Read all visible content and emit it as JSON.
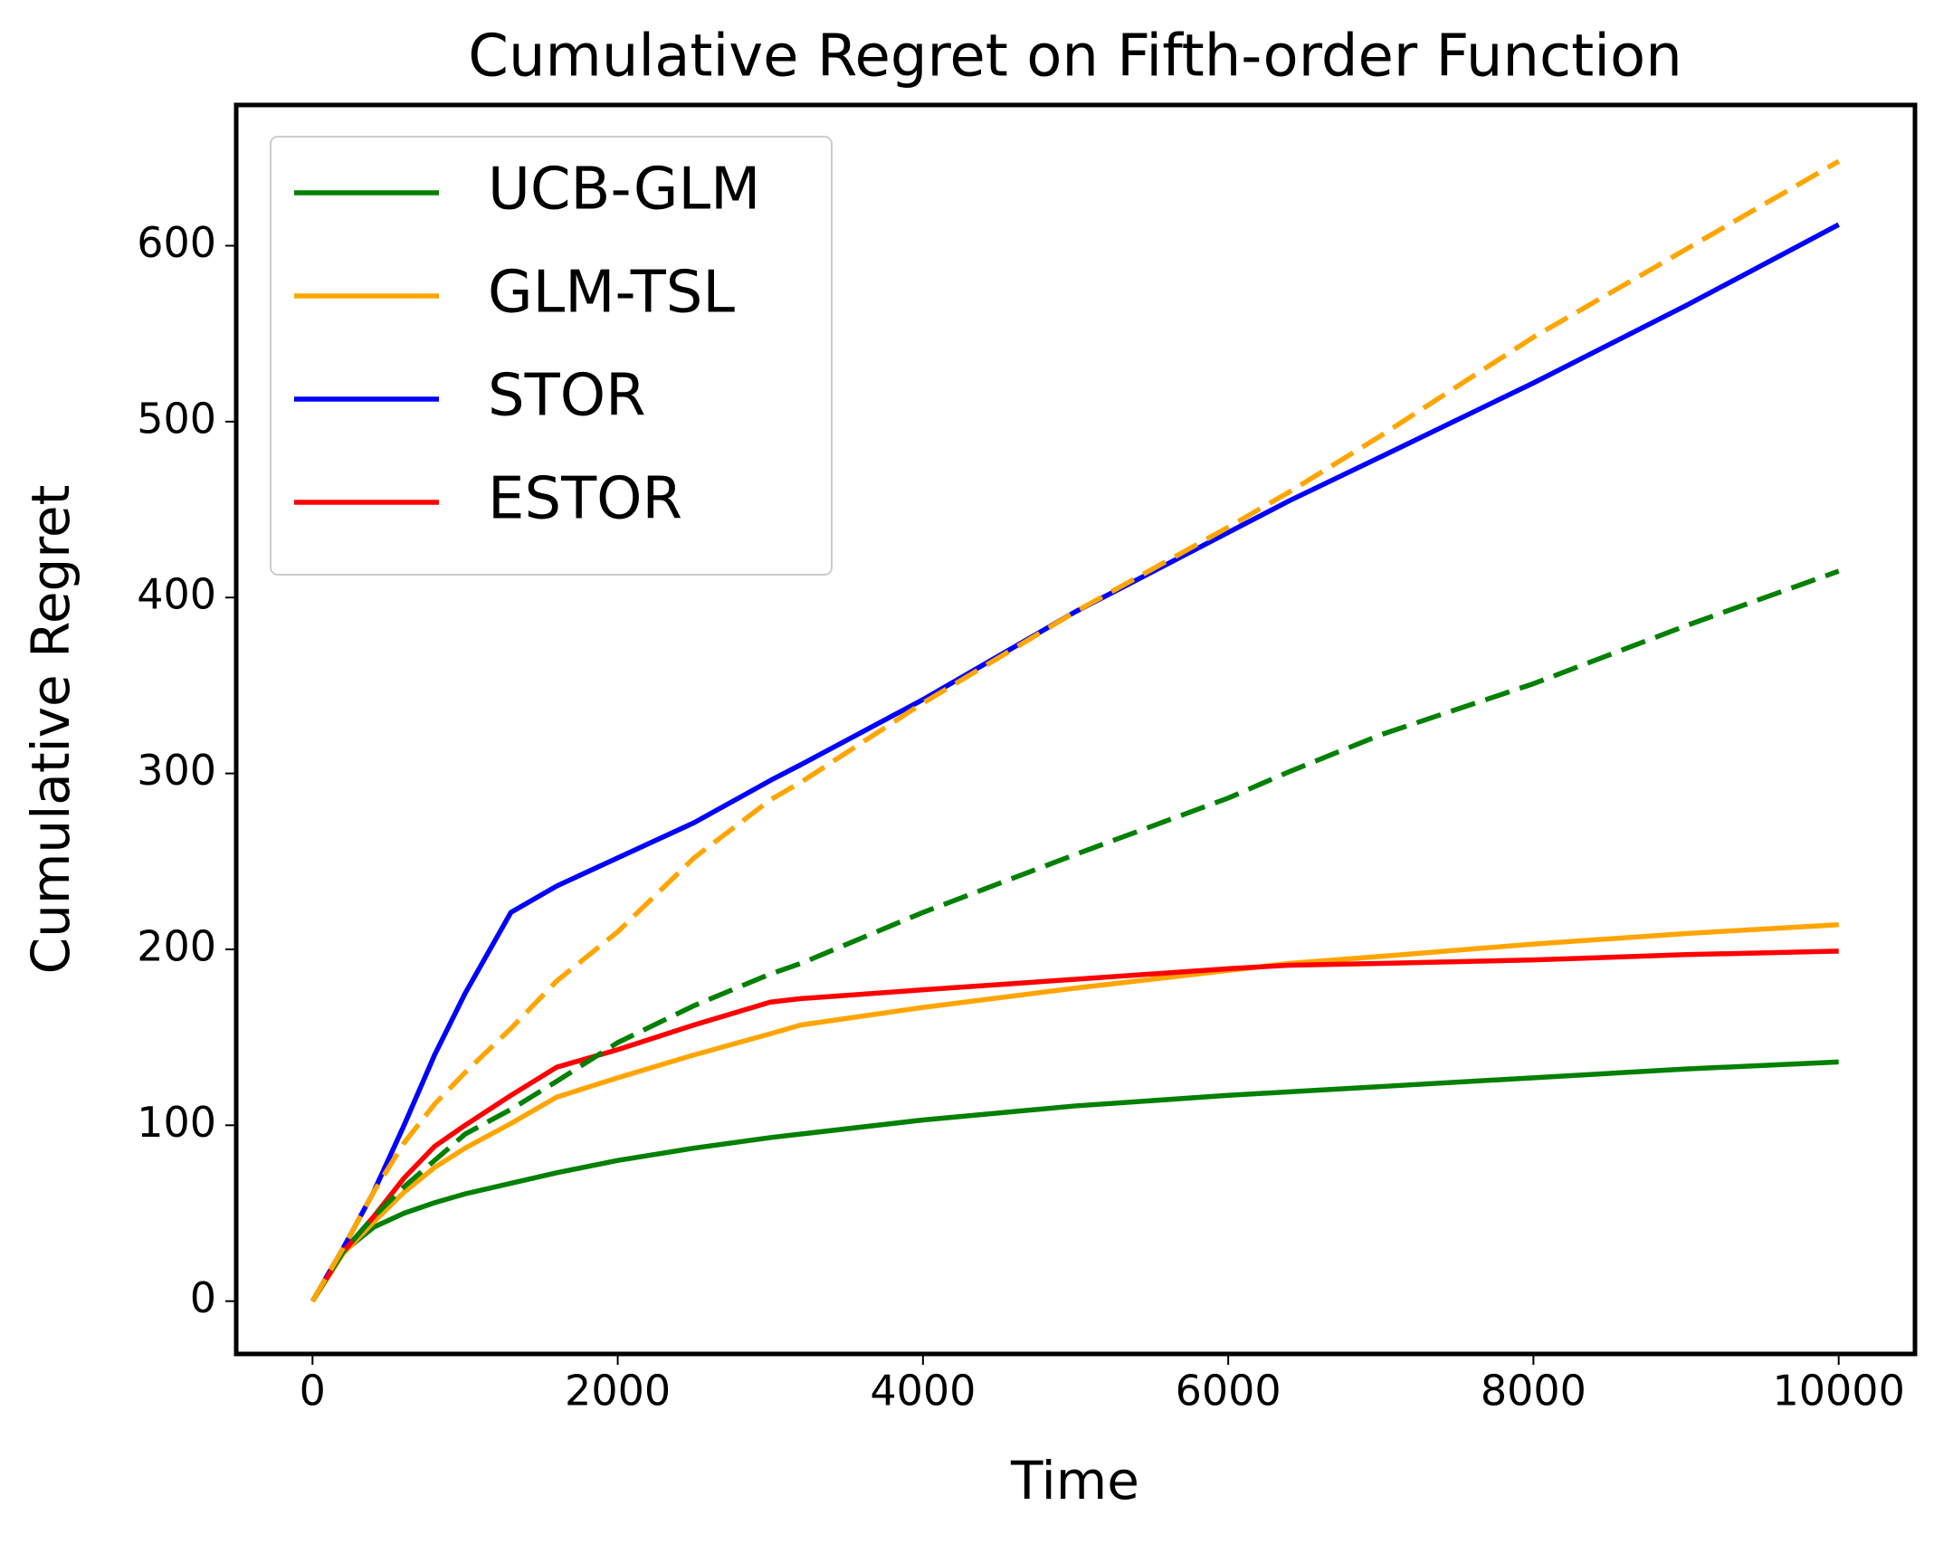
{
  "chart_data": {
    "type": "line",
    "title": "Cumulative Regret on Fifth-order Function",
    "xlabel": "Time",
    "ylabel": "Cumulative Regret",
    "x": [
      0,
      200,
      400,
      600,
      800,
      1000,
      1300,
      1600,
      2000,
      2500,
      3000,
      3200,
      4000,
      5000,
      6000,
      6400,
      7000,
      8000,
      9000,
      10000
    ],
    "series": [
      {
        "name": "UCB-GLM",
        "color": "#008000",
        "values": [
          0,
          28,
          42,
          50,
          56,
          61,
          67,
          73,
          80,
          87,
          93,
          95,
          103,
          111,
          117,
          119,
          122,
          127,
          132,
          136
        ]
      },
      {
        "name": "GLM-TSL",
        "color": "#ffa500",
        "values": [
          0,
          27,
          45,
          62,
          76,
          87,
          101,
          116,
          127,
          140,
          152,
          157,
          167,
          178,
          188,
          192,
          196,
          203,
          209,
          214
        ]
      },
      {
        "name": "STOR",
        "color": "#0000ff",
        "values": [
          0,
          30,
          62,
          100,
          140,
          175,
          221,
          236,
          252,
          272,
          296,
          305,
          342,
          392,
          437,
          455,
          480,
          522,
          566,
          612
        ]
      },
      {
        "name": "ESTOR",
        "color": "#ff0000",
        "values": [
          0,
          28,
          48,
          70,
          88,
          100,
          117,
          133,
          143,
          157,
          170,
          172,
          177,
          183,
          189,
          191,
          192,
          194,
          197,
          199
        ]
      },
      {
        "color": "#008000",
        "dashed": true,
        "values": [
          0,
          28,
          48,
          65,
          80,
          95,
          109,
          125,
          147,
          168,
          186,
          192,
          221,
          254,
          286,
          301,
          322,
          351,
          384,
          415
        ]
      },
      {
        "color": "#ffa500",
        "dashed": true,
        "values": [
          0,
          30,
          62,
          90,
          112,
          130,
          155,
          182,
          210,
          252,
          285,
          295,
          340,
          392,
          440,
          460,
          492,
          548,
          598,
          648
        ]
      }
    ],
    "xlim": [
      -500,
      10500
    ],
    "ylim": [
      -30,
      680
    ],
    "xticks": [
      0,
      2000,
      4000,
      6000,
      8000,
      10000
    ],
    "yticks": [
      0,
      100,
      200,
      300,
      400,
      500,
      600
    ],
    "grid": false,
    "legend": "upper left"
  }
}
